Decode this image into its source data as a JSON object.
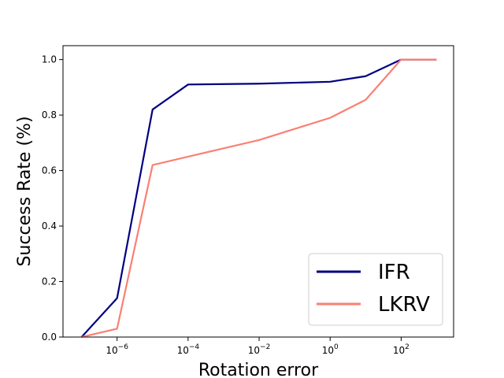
{
  "chart_data": {
    "type": "line",
    "xscale": "log",
    "xlabel": "Rotation error",
    "ylabel": "Success Rate (%)",
    "xlim": [
      3e-08,
      3000
    ],
    "ylim": [
      0,
      1.05
    ],
    "x_ticks": [
      {
        "base": "10",
        "exp": "−6",
        "value": 1e-06
      },
      {
        "base": "10",
        "exp": "−4",
        "value": 0.0001
      },
      {
        "base": "10",
        "exp": "−2",
        "value": 0.01
      },
      {
        "base": "10",
        "exp": "0",
        "value": 1
      },
      {
        "base": "10",
        "exp": "2",
        "value": 100
      }
    ],
    "y_ticks": [
      {
        "label": "0.0",
        "value": 0.0
      },
      {
        "label": "0.2",
        "value": 0.2
      },
      {
        "label": "0.4",
        "value": 0.4
      },
      {
        "label": "0.6",
        "value": 0.6
      },
      {
        "label": "0.8",
        "value": 0.8
      },
      {
        "label": "1.0",
        "value": 1.0
      }
    ],
    "grid": false,
    "legend_position": "lower-right",
    "series": [
      {
        "name": "IFR",
        "color": "#000080",
        "x": [
          1e-07,
          1e-06,
          1e-05,
          0.0001,
          0.01,
          1,
          10,
          100,
          1000
        ],
        "y": [
          0.0,
          0.14,
          0.82,
          0.91,
          0.913,
          0.92,
          0.94,
          1.0,
          1.0
        ]
      },
      {
        "name": "LKRV",
        "color": "#FA8072",
        "x": [
          1e-07,
          1e-06,
          1e-05,
          0.0001,
          0.01,
          0.1,
          1,
          10,
          100,
          1000
        ],
        "y": [
          0.0,
          0.03,
          0.62,
          0.65,
          0.71,
          0.75,
          0.79,
          0.855,
          1.0,
          1.0
        ]
      }
    ]
  }
}
